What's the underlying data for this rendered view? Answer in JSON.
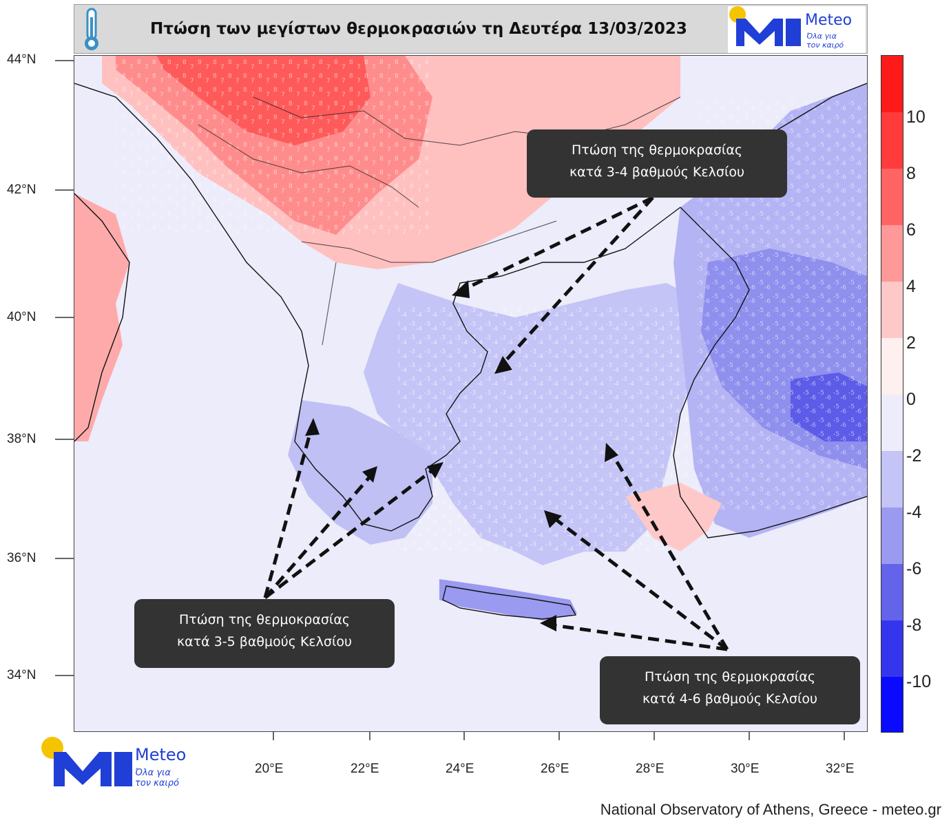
{
  "header": {
    "title": "Πτώση των μεγίστων θερμοκρασιών τη Δευτέρα 13/03/2023",
    "thermometer_icon": "thermometer-icon"
  },
  "logo": {
    "word": "Meteo",
    "tagline_1": "Όλα για",
    "tagline_2": "τον καιρό",
    "brand_blue": "#1f3fd6",
    "brand_yellow": "#f5c400"
  },
  "map": {
    "lat_labels": [
      "44°N",
      "42°N",
      "40°N",
      "38°N",
      "36°N",
      "34°N"
    ],
    "lon_labels": [
      "20°E",
      "22°E",
      "24°E",
      "26°E",
      "28°E",
      "30°E",
      "32°E"
    ],
    "background_color": "#ececfb"
  },
  "colorbar": {
    "labels": [
      "10",
      "8",
      "6",
      "4",
      "2",
      "0",
      "-2",
      "-4",
      "-6",
      "-8",
      "-10"
    ],
    "colors": [
      "#ff1a1a",
      "#ff3b3b",
      "#ff6464",
      "#ff9898",
      "#ffc8c8",
      "#fff0f0",
      "#ececfb",
      "#c4c4f6",
      "#9a9af0",
      "#6464ea",
      "#3535ee",
      "#0a0aff"
    ]
  },
  "callouts": {
    "northeast": {
      "line1": "Πτώση της θερμοκρασίας",
      "line2": "κατά 3-4 βαθμούς Κελσίου"
    },
    "southwest": {
      "line1": "Πτώση της θερμοκρασίας",
      "line2": "κατά 3-5 βαθμούς Κελσίου"
    },
    "southeast": {
      "line1": "Πτώση της θερμοκρασίας",
      "line2": "κατά 4-6 βαθμούς Κελσίου"
    }
  },
  "credit": "National Observatory of Athens, Greece - meteo.gr"
}
